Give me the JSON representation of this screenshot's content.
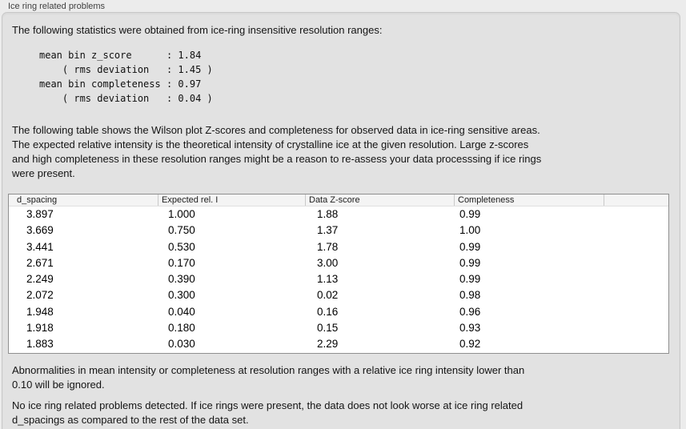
{
  "panel": {
    "title": "Ice ring related problems"
  },
  "intro": "The following statistics were obtained from ice-ring insensitive resolution ranges:",
  "stats_block": "mean bin z_score      : 1.84\n    ( rms deviation   : 1.45 )\nmean bin completeness : 0.97\n    ( rms deviation   : 0.04 )",
  "table_description": "The following table shows the Wilson plot Z-scores and completeness for observed data in ice-ring sensitive areas.\nThe expected relative intensity is the theoretical intensity of crystalline ice at the given resolution. Large z-scores\nand high completeness in these resolution ranges might be a reason to re-assess your data processsing if ice rings\nwere present.",
  "table": {
    "headers": [
      "d_spacing",
      "Expected rel. I",
      "Data Z-score",
      "Completeness",
      ""
    ],
    "rows": [
      [
        "3.897",
        "1.000",
        "1.88",
        "0.99"
      ],
      [
        "3.669",
        "0.750",
        "1.37",
        "1.00"
      ],
      [
        "3.441",
        "0.530",
        "1.78",
        "0.99"
      ],
      [
        "2.671",
        "0.170",
        "3.00",
        "0.99"
      ],
      [
        "2.249",
        "0.390",
        "1.13",
        "0.99"
      ],
      [
        "2.072",
        "0.300",
        "0.02",
        "0.98"
      ],
      [
        "1.948",
        "0.040",
        "0.16",
        "0.96"
      ],
      [
        "1.918",
        "0.180",
        "0.15",
        "0.93"
      ],
      [
        "1.883",
        "0.030",
        "2.29",
        "0.92"
      ]
    ]
  },
  "ignore_note": "Abnormalities in mean intensity or completeness at resolution ranges with a relative ice ring intensity lower than\n0.10 will be ignored.",
  "conclusion": "No ice ring related problems detected. If ice rings were present, the data does not look worse at ice ring related\nd_spacings as compared to the rest of the data set.",
  "colors": {
    "page_bg": "#ececec",
    "panel_bg": "#e2e2e2",
    "panel_border": "#c8c8c8",
    "table_bg": "#ffffff",
    "table_border": "#8f8f8f",
    "header_bg": "#f4f4f4",
    "text": "#141414"
  }
}
